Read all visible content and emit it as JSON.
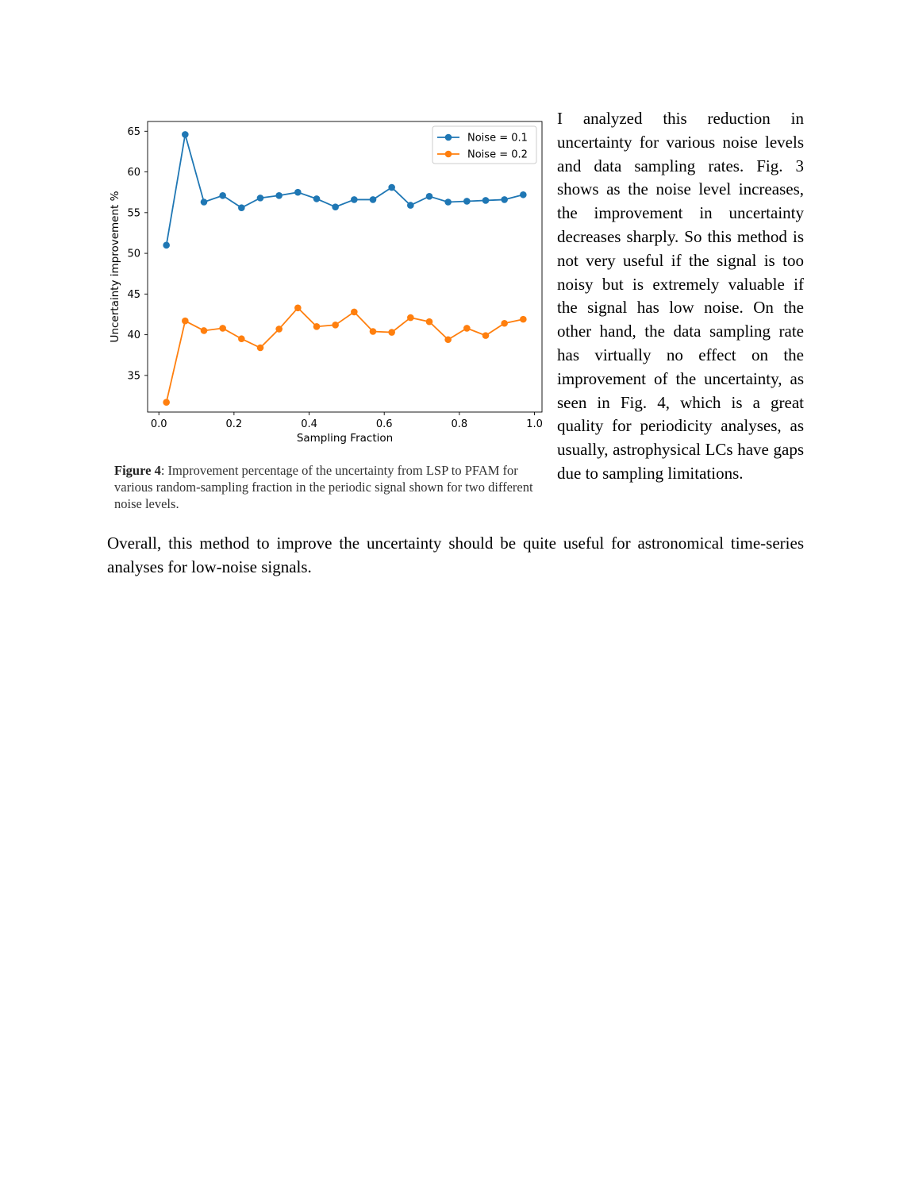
{
  "figure": {
    "caption_label": "Figure 4",
    "caption_text": ": Improvement percentage of the uncertainty from LSP to PFAM for various random-sampling fraction in the periodic signal shown for two different noise levels."
  },
  "chart_data": {
    "type": "line",
    "xlabel": "Sampling Fraction",
    "ylabel": "Uncertainty improvement %",
    "xlim": [
      -0.03,
      1.02
    ],
    "ylim": [
      30.5,
      66.2
    ],
    "xticks": [
      0.0,
      0.2,
      0.4,
      0.6,
      0.8,
      1.0
    ],
    "xtick_labels": [
      "0.0",
      "0.2",
      "0.4",
      "0.6",
      "0.8",
      "1.0"
    ],
    "yticks": [
      35,
      40,
      45,
      50,
      55,
      60,
      65
    ],
    "ytick_labels": [
      "35",
      "40",
      "45",
      "50",
      "55",
      "60",
      "65"
    ],
    "legend_position": "top-right",
    "grid": false,
    "x": [
      0.02,
      0.07,
      0.12,
      0.17,
      0.22,
      0.27,
      0.32,
      0.37,
      0.42,
      0.47,
      0.52,
      0.57,
      0.62,
      0.67,
      0.72,
      0.77,
      0.82,
      0.87,
      0.92,
      0.97
    ],
    "series": [
      {
        "name": "Noise = 0.1",
        "color": "#1f77b4",
        "values": [
          51.0,
          64.6,
          56.3,
          57.1,
          55.6,
          56.8,
          57.1,
          57.5,
          56.7,
          55.7,
          56.6,
          56.6,
          58.1,
          55.9,
          57.0,
          56.3,
          56.4,
          56.5,
          56.6,
          57.2
        ]
      },
      {
        "name": "Noise = 0.2",
        "color": "#ff7f0e",
        "values": [
          31.7,
          41.7,
          40.5,
          40.8,
          39.5,
          38.4,
          40.7,
          43.3,
          41.0,
          41.2,
          42.8,
          40.4,
          40.3,
          42.1,
          41.6,
          39.4,
          40.8,
          39.9,
          41.4,
          41.9
        ]
      }
    ]
  },
  "text": {
    "side_paragraph": "I analyzed this reduction in uncertainty for various noise levels and data sampling rates. Fig. 3 shows as the noise level increases, the improvement in uncertainty decreases sharply. So this method is not very useful if the signal is too noisy but is extremely valuable if the signal has low noise. On the other hand, the data sampling rate has virtually no effect on the improvement of the uncertainty, as seen in Fig. 4, which is a great quality for periodicity analyses, as usually, astrophysical LCs have gaps due to sampling limitations.",
    "overall_paragraph": "Overall, this method to improve the uncertainty should be quite useful for astronomical time-series analyses for low-noise signals."
  }
}
